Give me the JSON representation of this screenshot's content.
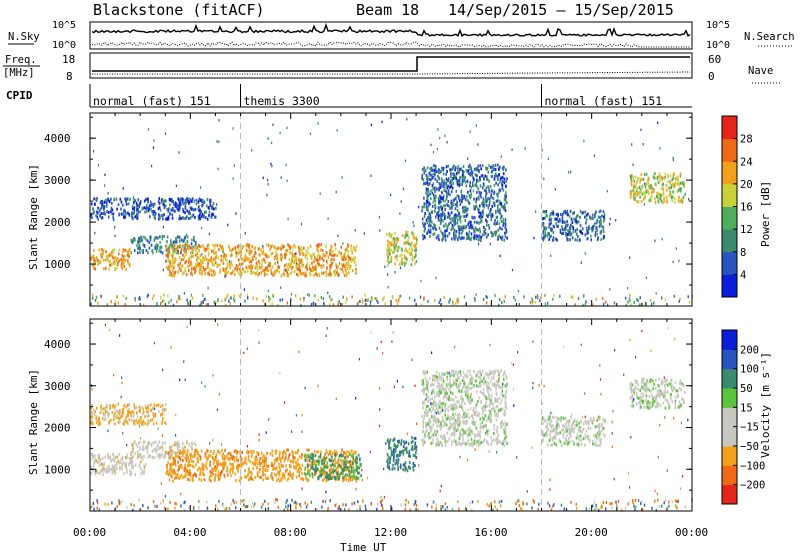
{
  "header": {
    "site": "Blackstone (fitACF)",
    "beam": "Beam 18",
    "date_range": "14/Sep/2015 – 15/Sep/2015"
  },
  "status_panels": {
    "nsky_label": "N.Sky",
    "nsearch_label": "N.Search",
    "left_ticks": [
      "10^5",
      "10^0"
    ],
    "right_ticks": [
      "10^5",
      "10^0"
    ],
    "freq_label": "Freq.",
    "freq_unit": "[MHz]",
    "freq_ticks": [
      "18",
      "8"
    ],
    "nave_label": "Nave",
    "nave_ticks": [
      "60",
      "0"
    ],
    "cpid_label": "CPID"
  },
  "cpid_segments": [
    {
      "label": "normal (fast) 151",
      "start_hour": 0,
      "end_hour": 6
    },
    {
      "label": "themis 3300",
      "start_hour": 6,
      "end_hour": 18
    },
    {
      "label": "normal (fast) 151",
      "start_hour": 18,
      "end_hour": 24
    }
  ],
  "axes": {
    "ylabel": "Slant Range [km]",
    "xlabel": "Time UT",
    "yticks": [
      "4000",
      "3000",
      "2000",
      "1000"
    ],
    "xticks": [
      "00:00",
      "04:00",
      "08:00",
      "12:00",
      "16:00",
      "20:00",
      "00:00"
    ]
  },
  "colorbars": {
    "power_label": "Power [dB]",
    "power_ticks": [
      "28",
      "24",
      "20",
      "16",
      "12",
      "8",
      "4"
    ],
    "velocity_label": "Velocity [m s⁻¹]",
    "velocity_ticks": [
      "200",
      "100",
      "50",
      "15",
      "−15",
      "−50",
      "−100",
      "−200"
    ]
  },
  "colors": {
    "power": [
      "#0a1edc",
      "#2a55c0",
      "#3a8a6e",
      "#4fae5c",
      "#c8d23a",
      "#f2a21a",
      "#ef6a14",
      "#e6261a"
    ],
    "velocity": [
      "#e6261a",
      "#ef6a14",
      "#f2a21a",
      "#c8c8c0",
      "#c8c8c0",
      "#5cc43a",
      "#3a8a6e",
      "#2a55c0",
      "#0a1edc"
    ]
  },
  "chart_data": [
    {
      "type": "heatmap",
      "title": "Power",
      "xlabel": "Time UT",
      "ylabel": "Slant Range [km]",
      "xlim_hours": [
        0,
        24
      ],
      "ylim_km": [
        0,
        4600
      ],
      "colorbar_range_db": [
        0,
        30
      ],
      "regions": [
        {
          "name": "near-range band",
          "t_start": 0.0,
          "t_end": 1.6,
          "r_low": 900,
          "r_high": 1400,
          "peak_db": 26
        },
        {
          "name": "diagonal rise",
          "t_start": 1.6,
          "t_end": 4.2,
          "r_low": 1300,
          "r_high": 1700,
          "peak_db": 14
        },
        {
          "name": "upper arc",
          "t_start": 0.0,
          "t_end": 5.0,
          "r_low": 2100,
          "r_high": 2600,
          "peak_db": 10
        },
        {
          "name": "main echo",
          "t_start": 3.0,
          "t_end": 10.6,
          "r_low": 750,
          "r_high": 1500,
          "peak_db": 26
        },
        {
          "name": "pre-switch patch",
          "t_start": 11.8,
          "t_end": 13.0,
          "r_low": 1000,
          "r_high": 1800,
          "peak_db": 22
        },
        {
          "name": "post-switch patches",
          "t_start": 13.2,
          "t_end": 16.6,
          "r_low": 1600,
          "r_high": 3400,
          "peak_db": 12
        },
        {
          "name": "evening arc",
          "t_start": 18.0,
          "t_end": 20.5,
          "r_low": 1600,
          "r_high": 2300,
          "peak_db": 12
        },
        {
          "name": "late far echo",
          "t_start": 21.5,
          "t_end": 23.7,
          "r_low": 2500,
          "r_high": 3200,
          "peak_db": 22
        }
      ]
    },
    {
      "type": "heatmap",
      "title": "Velocity",
      "xlabel": "Time UT",
      "ylabel": "Slant Range [km]",
      "xlim_hours": [
        0,
        24
      ],
      "ylim_km": [
        0,
        4600
      ],
      "colorbar_range_ms": [
        -250,
        250
      ],
      "regions": [
        {
          "name": "near-range band",
          "t_start": 0.0,
          "t_end": 2.2,
          "r_low": 900,
          "r_high": 1400,
          "velocity": -10
        },
        {
          "name": "diagonal rise",
          "t_start": 1.6,
          "t_end": 4.2,
          "r_low": 1300,
          "r_high": 1700,
          "velocity": -10
        },
        {
          "name": "upper arc",
          "t_start": 0.0,
          "t_end": 3.0,
          "r_low": 2100,
          "r_high": 2600,
          "velocity": -40
        },
        {
          "name": "main echo",
          "t_start": 3.0,
          "t_end": 10.6,
          "r_low": 750,
          "r_high": 1500,
          "velocity": -60
        },
        {
          "name": "main echo trailing",
          "t_start": 8.5,
          "t_end": 10.8,
          "r_low": 800,
          "r_high": 1400,
          "velocity": 40
        },
        {
          "name": "pre-switch patch",
          "t_start": 11.8,
          "t_end": 13.0,
          "r_low": 1000,
          "r_high": 1800,
          "velocity": 60
        },
        {
          "name": "post-switch patches",
          "t_start": 13.2,
          "t_end": 16.6,
          "r_low": 1600,
          "r_high": 3400,
          "velocity": 0
        },
        {
          "name": "evening arc",
          "t_start": 18.0,
          "t_end": 20.5,
          "r_low": 1600,
          "r_high": 2300,
          "velocity": 0
        },
        {
          "name": "late far echo",
          "t_start": 21.5,
          "t_end": 23.7,
          "r_low": 2500,
          "r_high": 3200,
          "velocity": 0
        }
      ]
    }
  ]
}
